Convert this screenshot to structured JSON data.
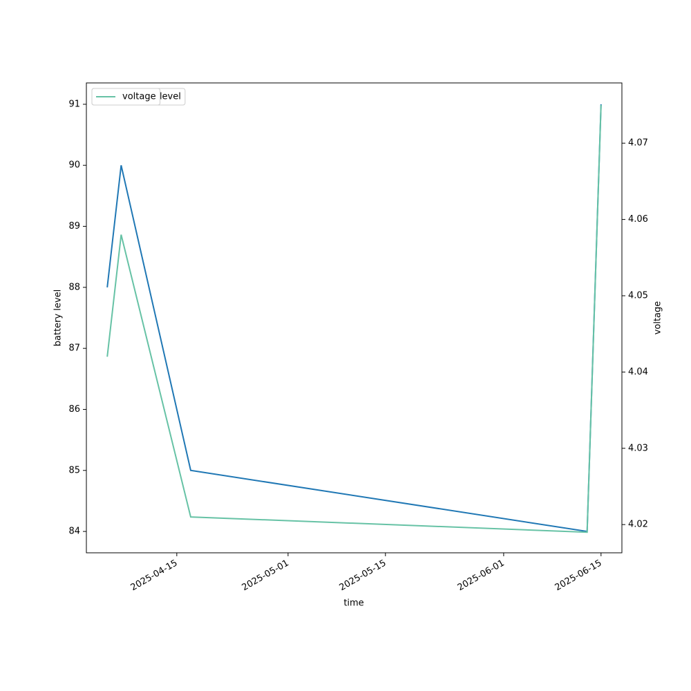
{
  "chart_data": {
    "type": "line",
    "x": [
      "2025-04-05",
      "2025-04-07",
      "2025-04-17",
      "2025-06-13",
      "2025-06-15"
    ],
    "series": [
      {
        "name": "battery_level",
        "color": "#1f77b4",
        "values": [
          88,
          90,
          85,
          84,
          91
        ]
      },
      {
        "name": "voltage",
        "color": "#66c2a5",
        "axis": "y2",
        "values": [
          4.042,
          4.058,
          4.021,
          4.019,
          4.075
        ]
      }
    ],
    "xlabel": "time",
    "ylabel": "battery level",
    "y2label": "voltage",
    "xlim": [
      "2025-04-02",
      "2025-06-18"
    ],
    "xticks": [
      "2025-04-15",
      "2025-05-01",
      "2025-05-15",
      "2025-06-01",
      "2025-06-15"
    ],
    "ylim": [
      83.65,
      91.35
    ],
    "yticks": [
      84,
      85,
      86,
      87,
      88,
      89,
      90,
      91
    ],
    "y2lim": [
      4.0163,
      4.0779
    ],
    "y2ticks": [
      4.02,
      4.03,
      4.04,
      4.05,
      4.06,
      4.07
    ],
    "legend": "upper left",
    "grid": false
  }
}
